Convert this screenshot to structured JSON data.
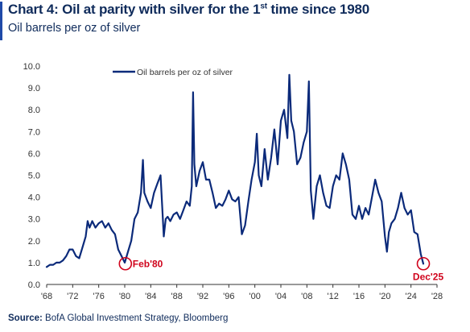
{
  "header": {
    "title_pre": "Chart 4: Oil at parity with silver for the 1",
    "title_sup": "st",
    "title_post": " time since 1980",
    "subtitle": "Oil barrels per oz of silver"
  },
  "footer": {
    "source_label": "Source:",
    "source_text": " BofA Global Investment Strategy, Bloomberg"
  },
  "colors": {
    "line": "#0b2a7a",
    "annotation": "#d0021b",
    "accent": "#1f4aa8",
    "axis": "#333333"
  },
  "chart_data": {
    "type": "line",
    "title": "Chart 4: Oil at parity with silver for the 1st time since 1980",
    "subtitle": "Oil barrels per oz of silver",
    "xlabel": "",
    "ylabel": "",
    "xlim": [
      1968,
      2028
    ],
    "ylim": [
      0,
      10
    ],
    "grid": false,
    "legend_position": "top-left",
    "yticks": [
      "0.0",
      "1.0",
      "2.0",
      "3.0",
      "4.0",
      "5.0",
      "6.0",
      "7.0",
      "8.0",
      "9.0",
      "10.0"
    ],
    "xticks": [
      "'68",
      "'72",
      "'76",
      "'80",
      "'84",
      "'88",
      "'92",
      "'96",
      "'00",
      "'04",
      "'08",
      "'12",
      "'16",
      "'20",
      "'24",
      "'28"
    ],
    "series": [
      {
        "name": "Oil barrels per oz of silver",
        "x": [
          1968.0,
          1968.5,
          1969.0,
          1969.5,
          1970.0,
          1970.5,
          1971.0,
          1971.5,
          1972.0,
          1972.5,
          1973.0,
          1973.5,
          1974.0,
          1974.3,
          1974.6,
          1975.0,
          1975.5,
          1976.0,
          1976.5,
          1977.0,
          1977.5,
          1978.0,
          1978.5,
          1979.0,
          1979.5,
          1980.0,
          1980.2,
          1980.5,
          1981.0,
          1981.5,
          1982.0,
          1982.5,
          1982.8,
          1983.0,
          1983.5,
          1984.0,
          1984.5,
          1985.0,
          1985.5,
          1986.0,
          1986.3,
          1986.6,
          1987.0,
          1987.5,
          1988.0,
          1988.5,
          1989.0,
          1989.5,
          1990.0,
          1990.3,
          1990.5,
          1990.7,
          1991.0,
          1991.5,
          1992.0,
          1992.5,
          1993.0,
          1993.5,
          1994.0,
          1994.5,
          1995.0,
          1995.5,
          1996.0,
          1996.5,
          1997.0,
          1997.5,
          1998.0,
          1998.5,
          1999.0,
          1999.5,
          2000.0,
          2000.3,
          2000.6,
          2001.0,
          2001.5,
          2002.0,
          2002.5,
          2003.0,
          2003.5,
          2004.0,
          2004.5,
          2005.0,
          2005.3,
          2005.6,
          2006.0,
          2006.5,
          2007.0,
          2007.5,
          2008.0,
          2008.3,
          2008.6,
          2009.0,
          2009.5,
          2010.0,
          2010.5,
          2011.0,
          2011.5,
          2012.0,
          2012.5,
          2013.0,
          2013.5,
          2014.0,
          2014.5,
          2015.0,
          2015.5,
          2016.0,
          2016.5,
          2017.0,
          2017.5,
          2018.0,
          2018.5,
          2019.0,
          2019.5,
          2020.0,
          2020.3,
          2020.6,
          2021.0,
          2021.5,
          2022.0,
          2022.5,
          2023.0,
          2023.5,
          2024.0,
          2024.5,
          2025.0,
          2025.5,
          2025.9
        ],
        "values": [
          0.8,
          0.9,
          0.9,
          1.0,
          1.0,
          1.1,
          1.3,
          1.6,
          1.6,
          1.3,
          1.2,
          1.7,
          2.2,
          2.9,
          2.6,
          2.9,
          2.6,
          2.8,
          2.9,
          2.6,
          2.8,
          2.5,
          2.3,
          1.6,
          1.3,
          1.0,
          1.2,
          1.5,
          2.0,
          3.0,
          3.3,
          4.2,
          5.7,
          4.2,
          3.8,
          3.5,
          4.2,
          4.6,
          5.0,
          2.2,
          3.0,
          3.1,
          2.9,
          3.2,
          3.3,
          3.0,
          3.4,
          3.8,
          3.6,
          4.5,
          8.8,
          5.5,
          4.5,
          5.2,
          5.6,
          4.8,
          4.8,
          4.2,
          3.5,
          3.7,
          3.6,
          3.9,
          4.3,
          3.9,
          3.8,
          4.0,
          2.3,
          2.7,
          3.8,
          4.8,
          5.6,
          6.9,
          5.0,
          4.5,
          6.2,
          4.8,
          5.8,
          7.1,
          5.5,
          7.5,
          8.0,
          6.7,
          9.6,
          7.5,
          7.0,
          5.5,
          5.8,
          6.5,
          7.0,
          9.3,
          4.3,
          3.0,
          4.5,
          5.0,
          4.2,
          3.6,
          3.5,
          4.5,
          5.0,
          4.8,
          6.0,
          5.5,
          4.8,
          3.2,
          3.0,
          3.6,
          3.0,
          3.5,
          3.2,
          4.0,
          4.8,
          4.2,
          3.8,
          2.2,
          1.5,
          2.4,
          2.8,
          3.0,
          3.5,
          4.2,
          3.5,
          3.2,
          3.4,
          2.4,
          2.3,
          1.4,
          0.95
        ]
      }
    ],
    "annotations": [
      {
        "label": "Feb'80",
        "x": 1980.1,
        "y": 0.95
      },
      {
        "label": "Dec'25",
        "x": 2025.9,
        "y": 0.95
      }
    ]
  }
}
